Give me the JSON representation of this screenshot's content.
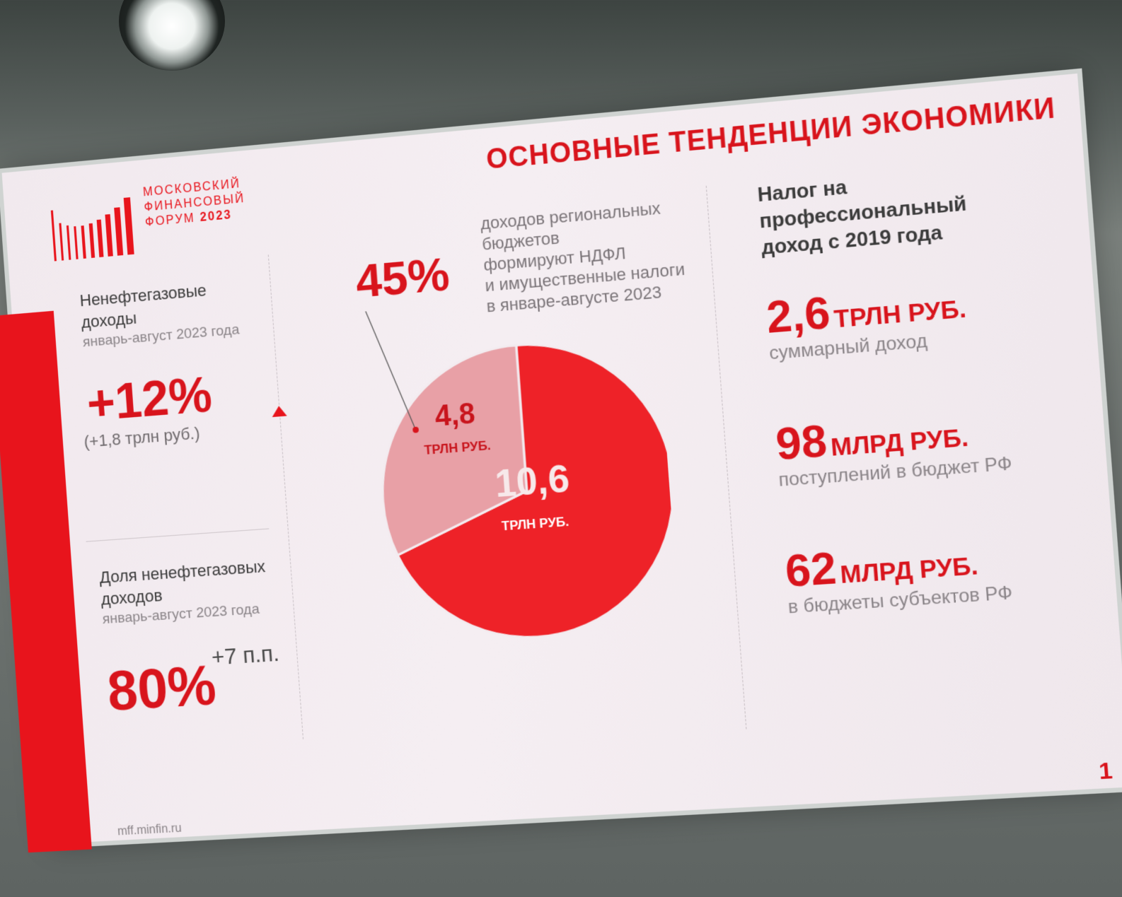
{
  "logo": {
    "line1": "МОСКОВСКИЙ",
    "line2": "ФИНАНСОВЫЙ",
    "line3": "ФОРУМ",
    "year": "2023"
  },
  "title": "ОСНОВНЫЕ ТЕНДЕНЦИИ ЭКОНОМИКИ",
  "left_column": {
    "block1_title_line1": "Ненефтегазовые",
    "block1_title_line2": "доходы",
    "block1_period": "январь-август 2023 года",
    "block1_value": "+12%",
    "block1_note": "(+1,8 трлн руб.)",
    "block2_title_line1": "Доля ненефтегазовых",
    "block2_title_line2": "доходов",
    "block2_period": "январь-август 2023 года",
    "block2_value": "80%",
    "block2_delta": "+7 п.п."
  },
  "middle_column": {
    "percent": "45%",
    "desc_line1": "доходов региональных",
    "desc_line2": "бюджетов",
    "desc_line3": "формируют НДФЛ",
    "desc_line4": "и имущественные налоги",
    "desc_line5": "в январе-августе 2023"
  },
  "chart_data": {
    "type": "pie",
    "slices": [
      {
        "label": "4,8",
        "unit": "ТРЛН РУБ.",
        "value": 4.8,
        "color": "#e8a0a6"
      },
      {
        "label": "10,6",
        "unit": "ТРЛН РУБ.",
        "value": 10.6,
        "color": "#ee2228"
      }
    ]
  },
  "right_column": {
    "title_line1": "Налог на профессиональный",
    "title_line2": "доход с 2019 года",
    "items": [
      {
        "number": "2,6",
        "unit": "ТРЛН РУБ.",
        "caption": "суммарный доход"
      },
      {
        "number": "98",
        "unit": "МЛРД РУБ.",
        "caption": "поступлений в бюджет РФ"
      },
      {
        "number": "62",
        "unit": "МЛРД РУБ.",
        "caption": "в бюджеты субъектов РФ"
      }
    ]
  },
  "footer": {
    "url": "mff.minfin.ru",
    "page": "1"
  },
  "colors": {
    "accent": "#e8141c",
    "background": "#f3ecf0"
  }
}
